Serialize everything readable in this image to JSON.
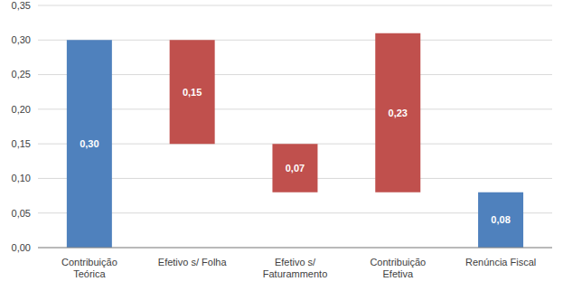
{
  "chart_data": {
    "type": "waterfall",
    "categories": [
      "Contribuição Teórica",
      "Efetivo s/ Folha",
      "Efetivo s/ Faturammento",
      "Contribuição Efetiva",
      "Renúncia Fiscal"
    ],
    "values": [
      0.3,
      0.15,
      0.07,
      0.23,
      0.08
    ],
    "value_labels": [
      "0,30",
      "0,15",
      "0,07",
      "0,23",
      "0,08"
    ],
    "bases": [
      0,
      0.15,
      0.08,
      0.08,
      0
    ],
    "colors": [
      "#4f81bd",
      "#c0504d",
      "#c0504d",
      "#c0504d",
      "#4f81bd"
    ],
    "ylim": [
      0,
      0.35
    ],
    "yticks": [
      {
        "value": 0,
        "label": "0,00"
      },
      {
        "value": 0.05,
        "label": "0,05"
      },
      {
        "value": 0.1,
        "label": "0,10"
      },
      {
        "value": 0.15,
        "label": "0,15"
      },
      {
        "value": 0.2,
        "label": "0,20"
      },
      {
        "value": 0.25,
        "label": "0,25"
      },
      {
        "value": 0.3,
        "label": "0,30"
      },
      {
        "value": 0.35,
        "label": "0,35"
      }
    ],
    "grid": true,
    "data_labels": true
  }
}
